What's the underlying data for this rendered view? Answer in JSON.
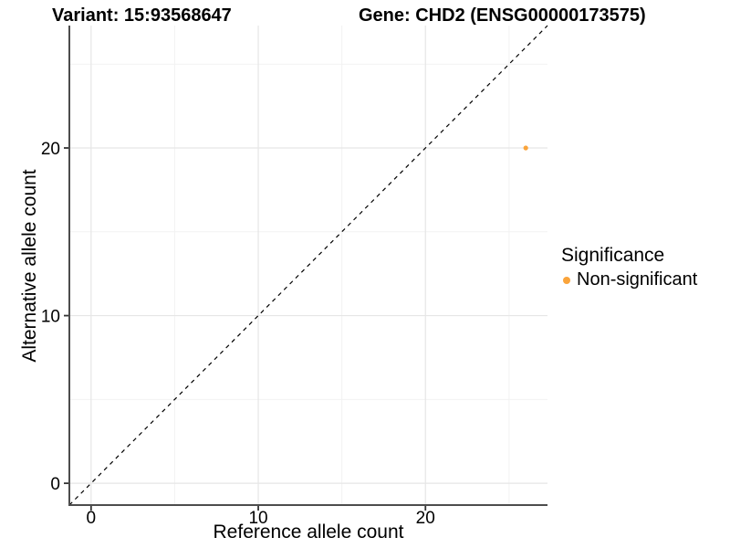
{
  "chart_data": {
    "type": "scatter",
    "title_left": "Variant: 15:93568647",
    "title_right": "Gene: CHD2 (ENSG00000173575)",
    "xlabel": "Reference allele count",
    "ylabel": "Alternative allele count",
    "xlim": [
      -1.3,
      27.3
    ],
    "ylim": [
      -1.3,
      27.3
    ],
    "x_ticks": [
      0,
      10,
      20
    ],
    "y_ticks": [
      0,
      10,
      20
    ],
    "x_minor_ticks": [
      5,
      15,
      25
    ],
    "y_minor_ticks": [
      5,
      15,
      25
    ],
    "grid": true,
    "legend_title": "Significance",
    "legend_position": "right",
    "series": [
      {
        "name": "Non-significant",
        "color": "#FAA43B",
        "point_radius": 2.6,
        "points": [
          {
            "x": 26,
            "y": 20
          }
        ]
      }
    ],
    "reference_line": {
      "kind": "identity y=x",
      "style": "dashed",
      "color": "#000000"
    },
    "style": {
      "background": "#FFFFFF",
      "grid_major": "#E6E6E6",
      "grid_minor": "#F2F2F2",
      "axis_line": "#4D4D4D",
      "tick": "#333333",
      "text": "#000000"
    }
  }
}
